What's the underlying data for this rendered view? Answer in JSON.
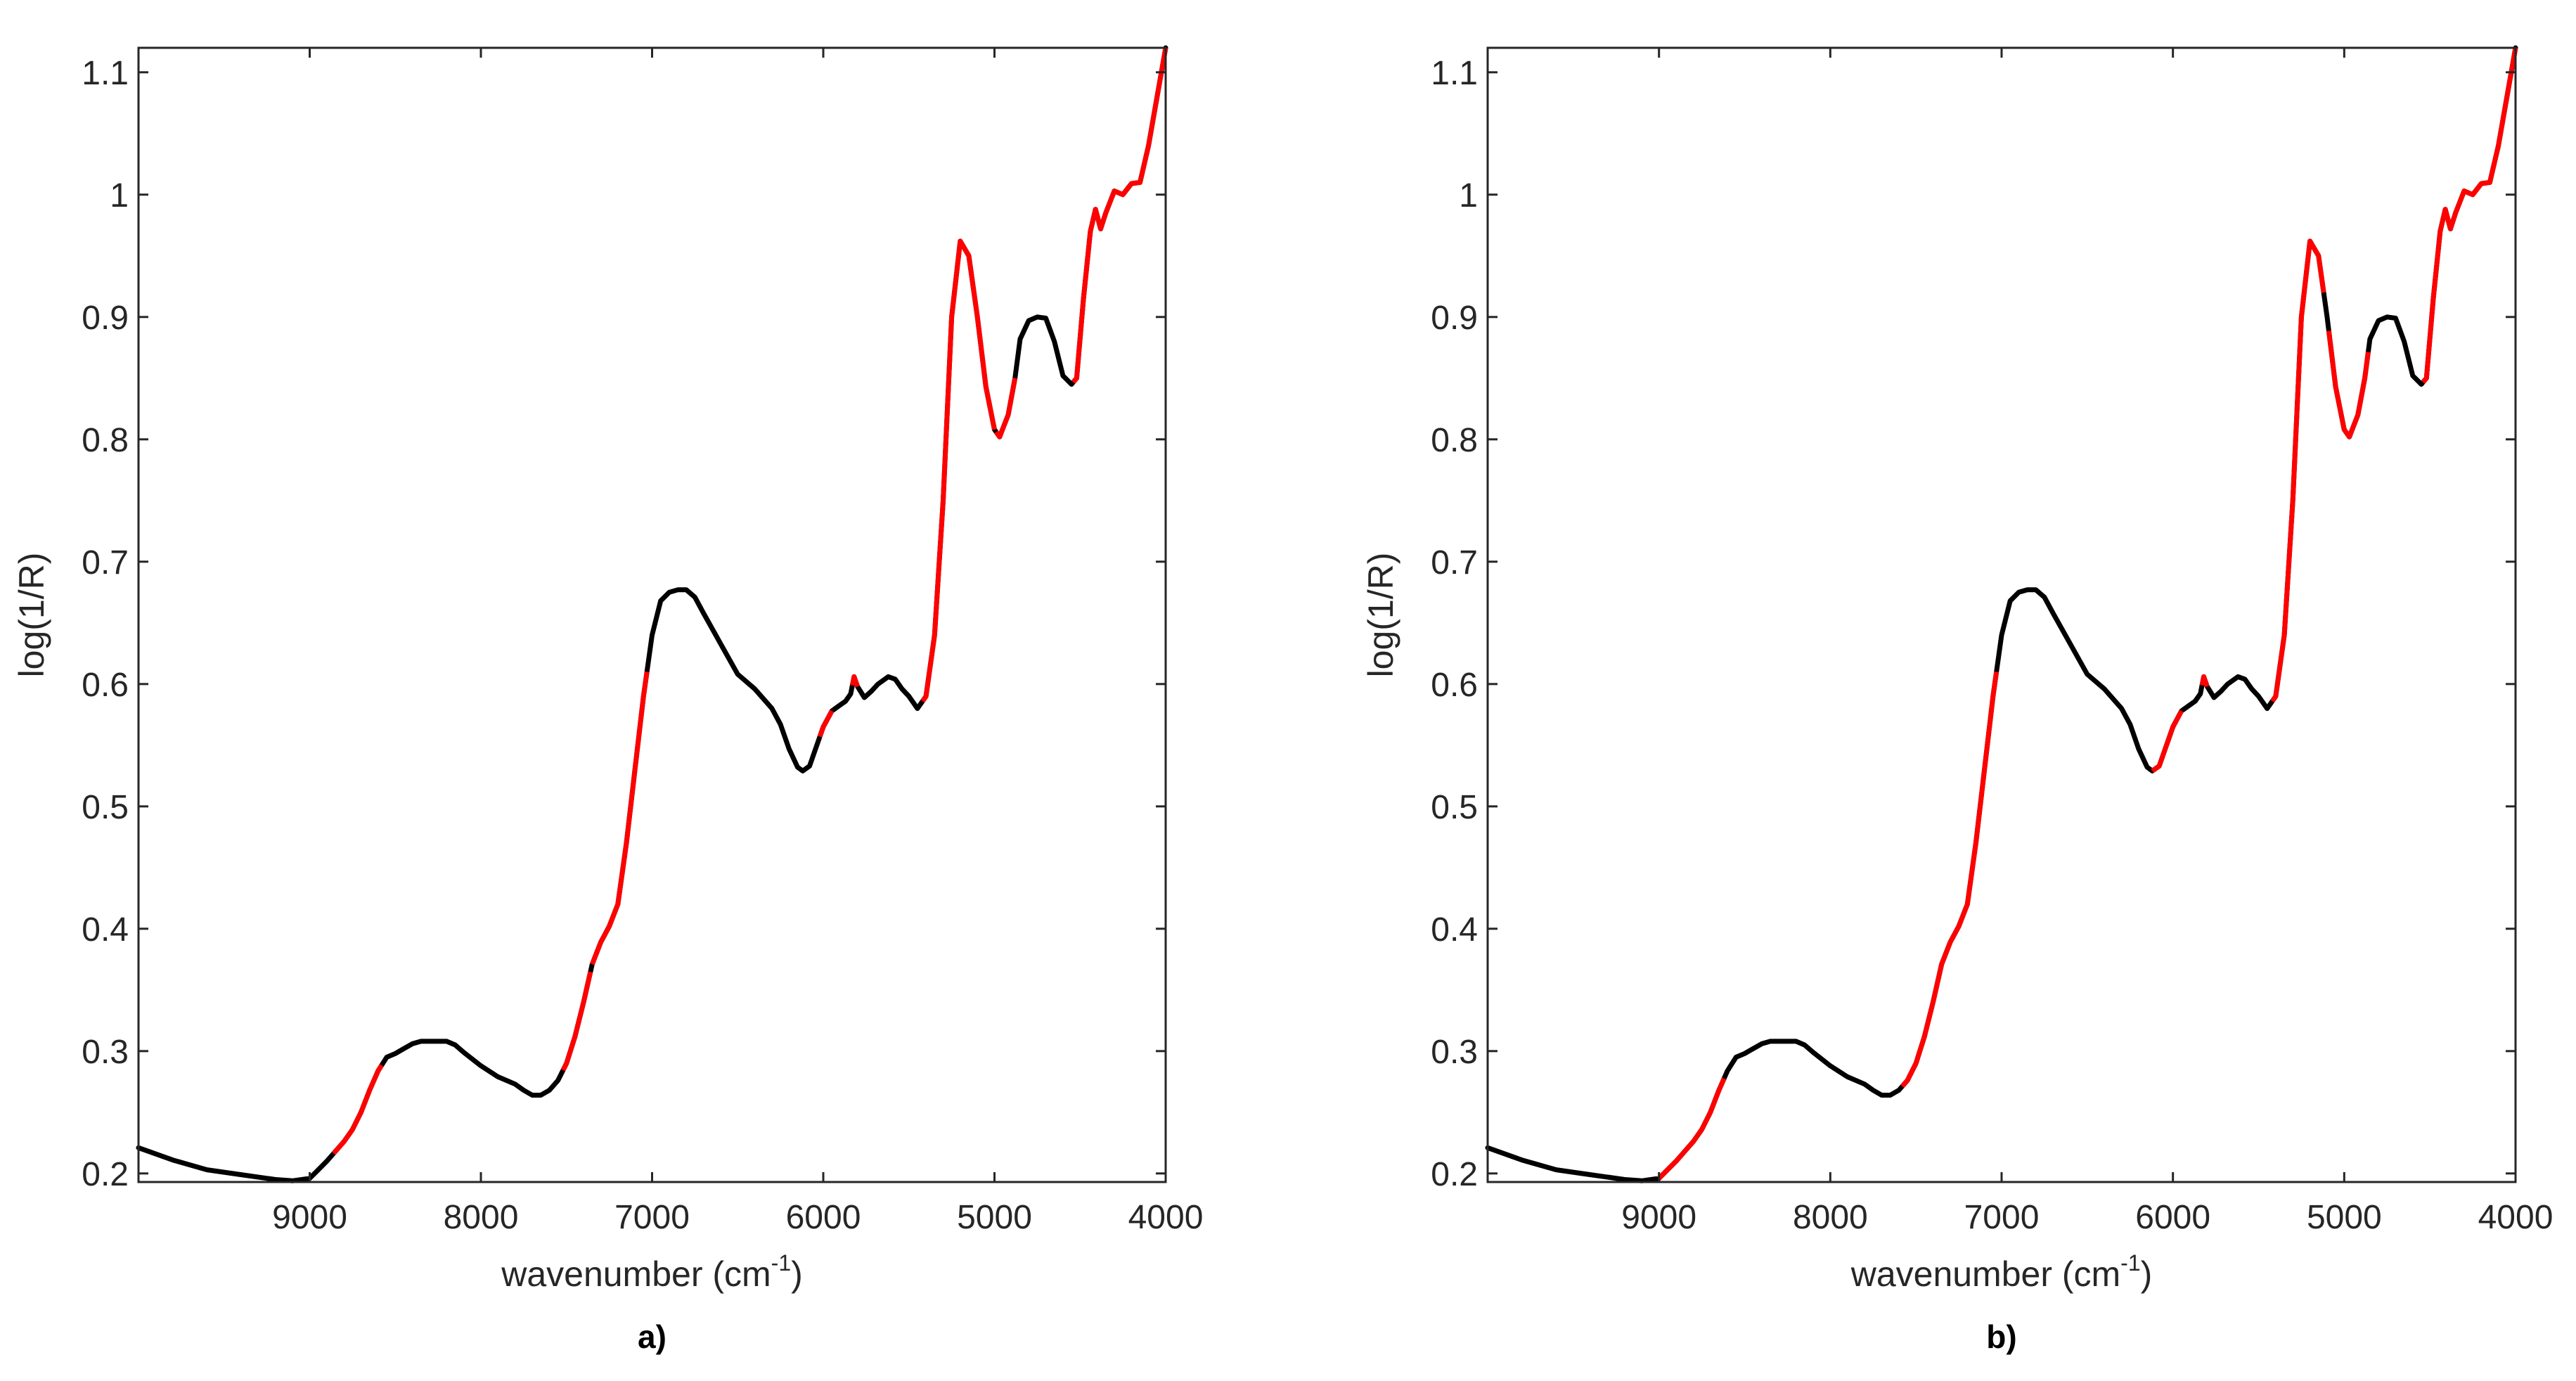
{
  "figure": {
    "panels": [
      {
        "label": "a)"
      },
      {
        "label": "b)"
      }
    ]
  },
  "colors": {
    "spectrum": "#000000",
    "selected": "#ff0000",
    "axis": "#262626"
  },
  "chart_data": [
    {
      "type": "line",
      "panel": "a)",
      "xlabel": "wavenumber (cm",
      "xlabel_superscript": "-1",
      "xlabel_suffix": ")",
      "ylabel": "log(1/R)",
      "xlim": [
        10000,
        4000
      ],
      "x_reversed": true,
      "ylim": [
        0.193,
        1.12
      ],
      "xticks": [
        9000,
        8000,
        7000,
        6000,
        5000,
        4000
      ],
      "xtick_labels": [
        "9000",
        "8000",
        "7000",
        "6000",
        "5000",
        "4000"
      ],
      "yticks": [
        0.2,
        0.3,
        0.4,
        0.5,
        0.6,
        0.7,
        0.8,
        0.9,
        1,
        1.1
      ],
      "ytick_labels": [
        "0.2",
        "0.3",
        "0.4",
        "0.5",
        "0.6",
        "0.7",
        "0.8",
        "0.9",
        "1",
        "1.1"
      ],
      "grid": false,
      "series": [
        {
          "points": [
            [
              10000,
              0.221
            ],
            [
              9800,
              0.211
            ],
            [
              9600,
              0.203
            ],
            [
              9400,
              0.199
            ],
            [
              9200,
              0.195
            ],
            [
              9100,
              0.194
            ],
            [
              9000,
              0.196
            ],
            [
              8950,
              0.203
            ],
            [
              8900,
              0.21
            ],
            [
              8850,
              0.218
            ],
            [
              8800,
              0.226
            ],
            [
              8750,
              0.236
            ],
            [
              8700,
              0.25
            ],
            [
              8650,
              0.268
            ],
            [
              8600,
              0.284
            ],
            [
              8550,
              0.295
            ],
            [
              8500,
              0.298
            ],
            [
              8450,
              0.302
            ],
            [
              8400,
              0.306
            ],
            [
              8350,
              0.308
            ],
            [
              8300,
              0.308
            ],
            [
              8200,
              0.308
            ],
            [
              8150,
              0.305
            ],
            [
              8100,
              0.299
            ],
            [
              8000,
              0.288
            ],
            [
              7900,
              0.279
            ],
            [
              7800,
              0.273
            ],
            [
              7750,
              0.268
            ],
            [
              7700,
              0.264
            ],
            [
              7650,
              0.264
            ],
            [
              7600,
              0.268
            ],
            [
              7550,
              0.276
            ],
            [
              7500,
              0.29
            ],
            [
              7450,
              0.312
            ],
            [
              7400,
              0.34
            ],
            [
              7350,
              0.371
            ],
            [
              7300,
              0.389
            ],
            [
              7250,
              0.402
            ],
            [
              7200,
              0.42
            ],
            [
              7150,
              0.47
            ],
            [
              7100,
              0.53
            ],
            [
              7050,
              0.59
            ],
            [
              7000,
              0.64
            ],
            [
              6950,
              0.668
            ],
            [
              6900,
              0.675
            ],
            [
              6850,
              0.677
            ],
            [
              6800,
              0.677
            ],
            [
              6750,
              0.671
            ],
            [
              6700,
              0.658
            ],
            [
              6600,
              0.633
            ],
            [
              6500,
              0.608
            ],
            [
              6400,
              0.596
            ],
            [
              6300,
              0.58
            ],
            [
              6250,
              0.567
            ],
            [
              6200,
              0.547
            ],
            [
              6150,
              0.532
            ],
            [
              6120,
              0.529
            ],
            [
              6080,
              0.533
            ],
            [
              6050,
              0.545
            ],
            [
              6000,
              0.565
            ],
            [
              5950,
              0.578
            ],
            [
              5900,
              0.583
            ],
            [
              5870,
              0.586
            ],
            [
              5840,
              0.592
            ],
            [
              5820,
              0.606
            ],
            [
              5800,
              0.598
            ],
            [
              5760,
              0.589
            ],
            [
              5720,
              0.594
            ],
            [
              5680,
              0.6
            ],
            [
              5620,
              0.606
            ],
            [
              5580,
              0.604
            ],
            [
              5540,
              0.596
            ],
            [
              5500,
              0.59
            ],
            [
              5450,
              0.58
            ],
            [
              5400,
              0.59
            ],
            [
              5350,
              0.64
            ],
            [
              5300,
              0.75
            ],
            [
              5250,
              0.9
            ],
            [
              5200,
              0.962
            ],
            [
              5150,
              0.95
            ],
            [
              5100,
              0.9
            ],
            [
              5050,
              0.843
            ],
            [
              5000,
              0.808
            ],
            [
              4970,
              0.802
            ],
            [
              4920,
              0.82
            ],
            [
              4880,
              0.85
            ],
            [
              4850,
              0.882
            ],
            [
              4800,
              0.897
            ],
            [
              4750,
              0.9
            ],
            [
              4700,
              0.899
            ],
            [
              4650,
              0.88
            ],
            [
              4600,
              0.852
            ],
            [
              4550,
              0.845
            ],
            [
              4520,
              0.85
            ],
            [
              4480,
              0.915
            ],
            [
              4440,
              0.97
            ],
            [
              4410,
              0.988
            ],
            [
              4380,
              0.972
            ],
            [
              4350,
              0.985
            ],
            [
              4300,
              1.003
            ],
            [
              4250,
              1.0
            ],
            [
              4200,
              1.009
            ],
            [
              4150,
              1.01
            ],
            [
              4100,
              1.04
            ],
            [
              4050,
              1.08
            ],
            [
              4000,
              1.12
            ]
          ],
          "red_ranges": [
            [
              8860,
              8580
            ],
            [
              7520,
              7360
            ],
            [
              7350,
              7030
            ],
            [
              6020,
              5950
            ],
            [
              5830,
              5800
            ],
            [
              5420,
              5000
            ],
            [
              4990,
              4880
            ],
            [
              4540,
              4000
            ]
          ]
        }
      ]
    },
    {
      "type": "line",
      "panel": "b)",
      "xlabel": "wavenumber (cm",
      "xlabel_superscript": "-1",
      "xlabel_suffix": ")",
      "ylabel": "log(1/R)",
      "xlim": [
        10000,
        4000
      ],
      "x_reversed": true,
      "ylim": [
        0.193,
        1.12
      ],
      "xticks": [
        9000,
        8000,
        7000,
        6000,
        5000,
        4000
      ],
      "xtick_labels": [
        "9000",
        "8000",
        "7000",
        "6000",
        "5000",
        "4000"
      ],
      "yticks": [
        0.2,
        0.3,
        0.4,
        0.5,
        0.6,
        0.7,
        0.8,
        0.9,
        1,
        1.1
      ],
      "ytick_labels": [
        "0.2",
        "0.3",
        "0.4",
        "0.5",
        "0.6",
        "0.7",
        "0.8",
        "0.9",
        "1",
        "1.1"
      ],
      "grid": false,
      "series": [
        {
          "points": [
            [
              10000,
              0.221
            ],
            [
              9800,
              0.211
            ],
            [
              9600,
              0.203
            ],
            [
              9400,
              0.199
            ],
            [
              9200,
              0.195
            ],
            [
              9100,
              0.194
            ],
            [
              9000,
              0.196
            ],
            [
              8950,
              0.203
            ],
            [
              8900,
              0.21
            ],
            [
              8850,
              0.218
            ],
            [
              8800,
              0.226
            ],
            [
              8750,
              0.236
            ],
            [
              8700,
              0.25
            ],
            [
              8650,
              0.268
            ],
            [
              8600,
              0.284
            ],
            [
              8550,
              0.295
            ],
            [
              8500,
              0.298
            ],
            [
              8450,
              0.302
            ],
            [
              8400,
              0.306
            ],
            [
              8350,
              0.308
            ],
            [
              8300,
              0.308
            ],
            [
              8200,
              0.308
            ],
            [
              8150,
              0.305
            ],
            [
              8100,
              0.299
            ],
            [
              8000,
              0.288
            ],
            [
              7900,
              0.279
            ],
            [
              7800,
              0.273
            ],
            [
              7750,
              0.268
            ],
            [
              7700,
              0.264
            ],
            [
              7650,
              0.264
            ],
            [
              7600,
              0.268
            ],
            [
              7550,
              0.276
            ],
            [
              7500,
              0.29
            ],
            [
              7450,
              0.312
            ],
            [
              7400,
              0.34
            ],
            [
              7350,
              0.371
            ],
            [
              7300,
              0.389
            ],
            [
              7250,
              0.402
            ],
            [
              7200,
              0.42
            ],
            [
              7150,
              0.47
            ],
            [
              7100,
              0.53
            ],
            [
              7050,
              0.59
            ],
            [
              7000,
              0.64
            ],
            [
              6950,
              0.668
            ],
            [
              6900,
              0.675
            ],
            [
              6850,
              0.677
            ],
            [
              6800,
              0.677
            ],
            [
              6750,
              0.671
            ],
            [
              6700,
              0.658
            ],
            [
              6600,
              0.633
            ],
            [
              6500,
              0.608
            ],
            [
              6400,
              0.596
            ],
            [
              6300,
              0.58
            ],
            [
              6250,
              0.567
            ],
            [
              6200,
              0.547
            ],
            [
              6150,
              0.532
            ],
            [
              6120,
              0.529
            ],
            [
              6080,
              0.533
            ],
            [
              6050,
              0.545
            ],
            [
              6000,
              0.565
            ],
            [
              5950,
              0.578
            ],
            [
              5900,
              0.583
            ],
            [
              5870,
              0.586
            ],
            [
              5840,
              0.592
            ],
            [
              5820,
              0.606
            ],
            [
              5800,
              0.598
            ],
            [
              5760,
              0.589
            ],
            [
              5720,
              0.594
            ],
            [
              5680,
              0.6
            ],
            [
              5620,
              0.606
            ],
            [
              5580,
              0.604
            ],
            [
              5540,
              0.596
            ],
            [
              5500,
              0.59
            ],
            [
              5450,
              0.58
            ],
            [
              5400,
              0.59
            ],
            [
              5350,
              0.64
            ],
            [
              5300,
              0.75
            ],
            [
              5250,
              0.9
            ],
            [
              5200,
              0.962
            ],
            [
              5150,
              0.95
            ],
            [
              5100,
              0.9
            ],
            [
              5050,
              0.843
            ],
            [
              5000,
              0.808
            ],
            [
              4970,
              0.802
            ],
            [
              4920,
              0.82
            ],
            [
              4880,
              0.85
            ],
            [
              4850,
              0.882
            ],
            [
              4800,
              0.897
            ],
            [
              4750,
              0.9
            ],
            [
              4700,
              0.899
            ],
            [
              4650,
              0.88
            ],
            [
              4600,
              0.852
            ],
            [
              4550,
              0.845
            ],
            [
              4520,
              0.85
            ],
            [
              4480,
              0.915
            ],
            [
              4440,
              0.97
            ],
            [
              4410,
              0.988
            ],
            [
              4380,
              0.972
            ],
            [
              4350,
              0.985
            ],
            [
              4300,
              1.003
            ],
            [
              4250,
              1.0
            ],
            [
              4200,
              1.009
            ],
            [
              4150,
              1.01
            ],
            [
              4100,
              1.04
            ],
            [
              4050,
              1.08
            ],
            [
              4000,
              1.12
            ]
          ],
          "red_ranges": [
            [
              9000,
              8620
            ],
            [
              7580,
              7030
            ],
            [
              6120,
              5950
            ],
            [
              5830,
              5800
            ],
            [
              5420,
              5120
            ],
            [
              5090,
              4860
            ],
            [
              4540,
              4000
            ]
          ]
        }
      ]
    }
  ]
}
